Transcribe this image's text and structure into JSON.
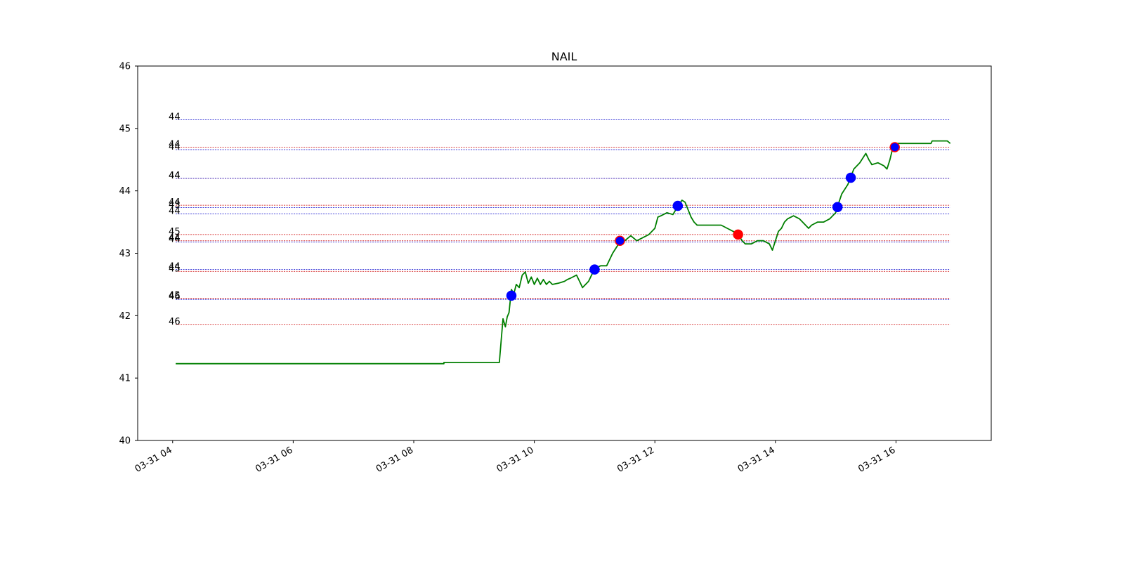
{
  "chart_data": {
    "type": "line",
    "title": "NAIL",
    "xlabel": "",
    "ylabel": "",
    "ylim": [
      40,
      46
    ],
    "xlim_hours": [
      3.42,
      17.58
    ],
    "x_ticks": [
      {
        "hour": 4,
        "label": "03-31 04"
      },
      {
        "hour": 6,
        "label": "03-31 06"
      },
      {
        "hour": 8,
        "label": "03-31 08"
      },
      {
        "hour": 10,
        "label": "03-31 10"
      },
      {
        "hour": 12,
        "label": "03-31 12"
      },
      {
        "hour": 14,
        "label": "03-31 14"
      },
      {
        "hour": 16,
        "label": "03-31 16"
      }
    ],
    "y_ticks": [
      40,
      41,
      42,
      43,
      44,
      45,
      46
    ],
    "grid": false,
    "series": [
      {
        "color": "#007f00",
        "points": [
          [
            4.05,
            41.23
          ],
          [
            8.5,
            41.23
          ],
          [
            8.5,
            41.25
          ],
          [
            9.42,
            41.25
          ],
          [
            9.48,
            41.95
          ],
          [
            9.52,
            41.82
          ],
          [
            9.55,
            41.98
          ],
          [
            9.58,
            42.05
          ],
          [
            9.62,
            42.42
          ],
          [
            9.66,
            42.35
          ],
          [
            9.7,
            42.5
          ],
          [
            9.75,
            42.45
          ],
          [
            9.8,
            42.65
          ],
          [
            9.85,
            42.7
          ],
          [
            9.9,
            42.52
          ],
          [
            9.95,
            42.62
          ],
          [
            10.0,
            42.5
          ],
          [
            10.05,
            42.6
          ],
          [
            10.1,
            42.5
          ],
          [
            10.15,
            42.58
          ],
          [
            10.2,
            42.5
          ],
          [
            10.25,
            42.55
          ],
          [
            10.3,
            42.5
          ],
          [
            10.4,
            42.52
          ],
          [
            10.5,
            42.55
          ],
          [
            10.55,
            42.58
          ],
          [
            10.6,
            42.6
          ],
          [
            10.7,
            42.65
          ],
          [
            10.75,
            42.55
          ],
          [
            10.8,
            42.45
          ],
          [
            10.9,
            42.55
          ],
          [
            11.0,
            42.75
          ],
          [
            11.1,
            42.8
          ],
          [
            11.2,
            42.8
          ],
          [
            11.3,
            43.0
          ],
          [
            11.38,
            43.12
          ],
          [
            11.42,
            43.2
          ],
          [
            11.5,
            43.2
          ],
          [
            11.6,
            43.28
          ],
          [
            11.7,
            43.2
          ],
          [
            11.8,
            43.25
          ],
          [
            11.9,
            43.3
          ],
          [
            12.0,
            43.4
          ],
          [
            12.05,
            43.58
          ],
          [
            12.1,
            43.6
          ],
          [
            12.2,
            43.65
          ],
          [
            12.3,
            43.62
          ],
          [
            12.38,
            43.75
          ],
          [
            12.45,
            43.85
          ],
          [
            12.5,
            43.82
          ],
          [
            12.55,
            43.7
          ],
          [
            12.6,
            43.58
          ],
          [
            12.65,
            43.5
          ],
          [
            12.7,
            43.45
          ],
          [
            12.8,
            43.45
          ],
          [
            13.1,
            43.45
          ],
          [
            13.2,
            43.4
          ],
          [
            13.3,
            43.35
          ],
          [
            13.38,
            43.3
          ],
          [
            13.45,
            43.2
          ],
          [
            13.5,
            43.15
          ],
          [
            13.6,
            43.15
          ],
          [
            13.7,
            43.2
          ],
          [
            13.8,
            43.2
          ],
          [
            13.9,
            43.15
          ],
          [
            13.95,
            43.05
          ],
          [
            14.0,
            43.2
          ],
          [
            14.05,
            43.35
          ],
          [
            14.1,
            43.4
          ],
          [
            14.15,
            43.5
          ],
          [
            14.2,
            43.55
          ],
          [
            14.3,
            43.6
          ],
          [
            14.4,
            43.55
          ],
          [
            14.5,
            43.45
          ],
          [
            14.55,
            43.4
          ],
          [
            14.6,
            43.45
          ],
          [
            14.7,
            43.5
          ],
          [
            14.8,
            43.5
          ],
          [
            14.9,
            43.55
          ],
          [
            15.0,
            43.65
          ],
          [
            15.03,
            43.75
          ],
          [
            15.1,
            43.95
          ],
          [
            15.2,
            44.1
          ],
          [
            15.25,
            44.22
          ],
          [
            15.3,
            44.35
          ],
          [
            15.4,
            44.45
          ],
          [
            15.5,
            44.6
          ],
          [
            15.55,
            44.5
          ],
          [
            15.6,
            44.42
          ],
          [
            15.7,
            44.45
          ],
          [
            15.8,
            44.4
          ],
          [
            15.85,
            44.35
          ],
          [
            15.9,
            44.5
          ],
          [
            15.95,
            44.7
          ],
          [
            16.0,
            44.76
          ],
          [
            16.58,
            44.76
          ],
          [
            16.6,
            44.8
          ],
          [
            16.85,
            44.8
          ],
          [
            16.9,
            44.76
          ]
        ]
      }
    ],
    "levels": [
      {
        "y": 45.14,
        "label": "44",
        "color": "#0000cc"
      },
      {
        "y": 44.7,
        "label": "44",
        "color": "#cc0000"
      },
      {
        "y": 44.66,
        "label": "44",
        "color": "#0000cc"
      },
      {
        "y": 44.2,
        "label": "44",
        "color": "#cc0000"
      },
      {
        "y": 44.2,
        "label": "44",
        "color": "#0000cc"
      },
      {
        "y": 43.77,
        "label": "44",
        "color": "#cc0000"
      },
      {
        "y": 43.73,
        "label": "43",
        "color": "#0000cc"
      },
      {
        "y": 43.63,
        "label": "44",
        "color": "#0000cc"
      },
      {
        "y": 43.3,
        "label": "45",
        "color": "#cc0000"
      },
      {
        "y": 43.2,
        "label": "44",
        "color": "#cc0000"
      },
      {
        "y": 43.18,
        "label": "44",
        "color": "#0000cc"
      },
      {
        "y": 42.74,
        "label": "44",
        "color": "#0000cc"
      },
      {
        "y": 42.71,
        "label": "45",
        "color": "#cc0000"
      },
      {
        "y": 42.28,
        "label": "45",
        "color": "#cc0000"
      },
      {
        "y": 42.26,
        "label": "46",
        "color": "#0000cc"
      },
      {
        "y": 41.86,
        "label": "46",
        "color": "#cc0000"
      }
    ],
    "level_x_range_hours": [
      4.05,
      16.9
    ],
    "markers": [
      {
        "x": 9.62,
        "y": 42.32,
        "color": "#0000ff",
        "ring": "#0000ff"
      },
      {
        "x": 11.0,
        "y": 42.74,
        "color": "#0000ff",
        "ring": "#0000ff"
      },
      {
        "x": 11.42,
        "y": 43.2,
        "color": "#0000ff",
        "ring": "#ff0000"
      },
      {
        "x": 12.38,
        "y": 43.76,
        "color": "#0000ff",
        "ring": "#0000ff"
      },
      {
        "x": 13.38,
        "y": 43.3,
        "color": "#ff0000",
        "ring": "#ff0000"
      },
      {
        "x": 15.03,
        "y": 43.74,
        "color": "#0000ff",
        "ring": "#0000ff"
      },
      {
        "x": 15.25,
        "y": 44.21,
        "color": "#0000ff",
        "ring": "#0000ff"
      },
      {
        "x": 15.98,
        "y": 44.7,
        "color": "#0000ff",
        "ring": "#ff0000"
      }
    ]
  }
}
